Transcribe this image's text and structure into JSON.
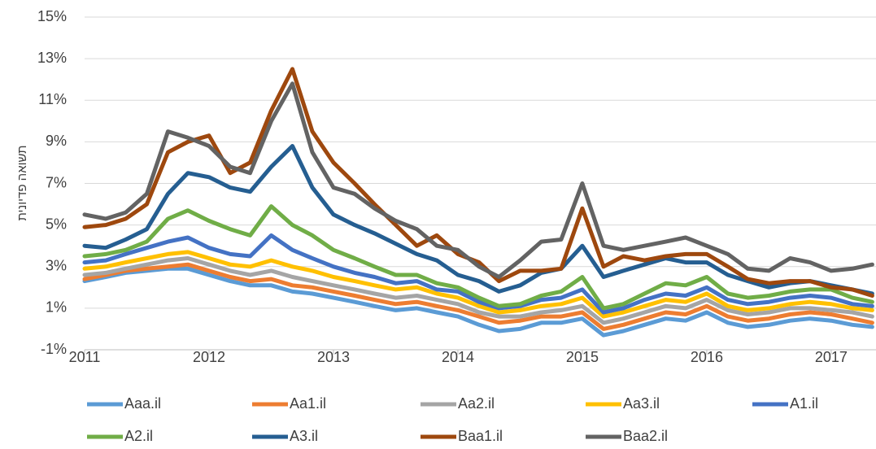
{
  "chart_data": {
    "type": "line",
    "y_label": "תשואה פדיונית",
    "x": [
      2011,
      2011.17,
      2011.33,
      2011.5,
      2011.67,
      2011.83,
      2012,
      2012.17,
      2012.33,
      2012.5,
      2012.67,
      2012.83,
      2013,
      2013.17,
      2013.33,
      2013.5,
      2013.67,
      2013.83,
      2014,
      2014.17,
      2014.33,
      2014.5,
      2014.67,
      2014.83,
      2015,
      2015.17,
      2015.33,
      2015.5,
      2015.67,
      2015.83,
      2016,
      2016.17,
      2016.33,
      2016.5,
      2016.67,
      2016.83,
      2017,
      2017.17,
      2017.33
    ],
    "xlim": [
      2011,
      2017.36
    ],
    "xticks": [
      2011,
      2012,
      2013,
      2014,
      2015,
      2016,
      2017
    ],
    "ylim": [
      -1,
      15
    ],
    "yticks": [
      {
        "value": -1,
        "label": "-1%"
      },
      {
        "value": 1,
        "label": "1%"
      },
      {
        "value": 3,
        "label": "3%"
      },
      {
        "value": 5,
        "label": "5%"
      },
      {
        "value": 7,
        "label": "7%"
      },
      {
        "value": 9,
        "label": "9%"
      },
      {
        "value": 11,
        "label": "11%"
      },
      {
        "value": 13,
        "label": "13%"
      },
      {
        "value": 15,
        "label": "15%"
      }
    ],
    "grid": true,
    "legend": "bottom",
    "series": [
      {
        "name": "Aaa.il",
        "color": "#5b9bd5",
        "values": [
          2.3,
          2.5,
          2.7,
          2.8,
          2.9,
          2.9,
          2.6,
          2.3,
          2.1,
          2.1,
          1.8,
          1.7,
          1.5,
          1.3,
          1.1,
          0.9,
          1.0,
          0.8,
          0.6,
          0.2,
          -0.1,
          0.0,
          0.3,
          0.3,
          0.5,
          -0.3,
          -0.1,
          0.2,
          0.5,
          0.4,
          0.8,
          0.3,
          0.1,
          0.2,
          0.4,
          0.5,
          0.4,
          0.2,
          0.1
        ]
      },
      {
        "name": "Aa1.il",
        "color": "#ed7d31",
        "values": [
          2.4,
          2.6,
          2.8,
          2.9,
          3.0,
          3.1,
          2.8,
          2.5,
          2.3,
          2.4,
          2.1,
          2.0,
          1.8,
          1.6,
          1.4,
          1.2,
          1.3,
          1.1,
          0.9,
          0.6,
          0.3,
          0.4,
          0.6,
          0.6,
          0.8,
          0.0,
          0.2,
          0.5,
          0.8,
          0.7,
          1.1,
          0.6,
          0.4,
          0.5,
          0.7,
          0.8,
          0.7,
          0.5,
          0.3
        ]
      },
      {
        "name": "Aa2.il",
        "color": "#a5a5a5",
        "values": [
          2.6,
          2.7,
          2.9,
          3.1,
          3.3,
          3.4,
          3.1,
          2.8,
          2.6,
          2.8,
          2.5,
          2.3,
          2.1,
          1.9,
          1.7,
          1.5,
          1.6,
          1.4,
          1.2,
          0.8,
          0.6,
          0.6,
          0.8,
          0.9,
          1.1,
          0.3,
          0.5,
          0.8,
          1.1,
          1.0,
          1.4,
          0.9,
          0.7,
          0.8,
          1.0,
          1.0,
          0.9,
          0.8,
          0.6
        ]
      },
      {
        "name": "Aa3.il",
        "color": "#ffc000",
        "values": [
          2.9,
          3.0,
          3.2,
          3.4,
          3.6,
          3.7,
          3.4,
          3.1,
          3.0,
          3.3,
          3.0,
          2.8,
          2.5,
          2.3,
          2.1,
          1.9,
          2.0,
          1.7,
          1.5,
          1.1,
          0.8,
          0.9,
          1.1,
          1.2,
          1.5,
          0.6,
          0.8,
          1.1,
          1.4,
          1.3,
          1.7,
          1.1,
          0.9,
          1.0,
          1.2,
          1.3,
          1.2,
          1.0,
          0.9
        ]
      },
      {
        "name": "A1.il",
        "color": "#4472c4",
        "values": [
          3.2,
          3.3,
          3.6,
          3.9,
          4.2,
          4.4,
          3.9,
          3.6,
          3.5,
          4.5,
          3.8,
          3.4,
          3.0,
          2.7,
          2.5,
          2.2,
          2.3,
          1.9,
          1.8,
          1.3,
          1.0,
          1.1,
          1.4,
          1.5,
          1.9,
          0.8,
          1.0,
          1.4,
          1.7,
          1.6,
          2.0,
          1.4,
          1.2,
          1.3,
          1.5,
          1.6,
          1.5,
          1.2,
          1.1
        ]
      },
      {
        "name": "A2.il",
        "color": "#70ad47",
        "values": [
          3.5,
          3.6,
          3.8,
          4.2,
          5.3,
          5.7,
          5.2,
          4.8,
          4.5,
          5.9,
          5.0,
          4.5,
          3.8,
          3.4,
          3.0,
          2.6,
          2.6,
          2.2,
          2.0,
          1.5,
          1.1,
          1.2,
          1.6,
          1.8,
          2.5,
          1.0,
          1.2,
          1.7,
          2.2,
          2.1,
          2.5,
          1.7,
          1.5,
          1.6,
          1.8,
          1.9,
          1.9,
          1.5,
          1.3
        ]
      },
      {
        "name": "A3.il",
        "color": "#255e91",
        "values": [
          4.0,
          3.9,
          4.3,
          4.8,
          6.5,
          7.5,
          7.3,
          6.8,
          6.6,
          7.8,
          8.8,
          6.8,
          5.5,
          5.0,
          4.6,
          4.1,
          3.6,
          3.3,
          2.6,
          2.3,
          1.8,
          2.1,
          2.7,
          2.9,
          4.0,
          2.5,
          2.8,
          3.1,
          3.4,
          3.2,
          3.2,
          2.6,
          2.3,
          2.0,
          2.2,
          2.3,
          2.1,
          1.9,
          1.7
        ]
      },
      {
        "name": "Baa1.il",
        "color": "#9e480e",
        "values": [
          4.9,
          5.0,
          5.3,
          6.0,
          8.5,
          9.0,
          9.3,
          7.5,
          8.0,
          10.5,
          12.5,
          9.5,
          8.0,
          7.0,
          6.0,
          5.0,
          4.0,
          4.5,
          3.6,
          3.2,
          2.3,
          2.8,
          2.8,
          2.9,
          5.8,
          3.0,
          3.5,
          3.3,
          3.5,
          3.6,
          3.6,
          3.0,
          2.4,
          2.2,
          2.3,
          2.3,
          2.0,
          1.9,
          1.6
        ]
      },
      {
        "name": "Baa2.il",
        "color": "#636363",
        "values": [
          5.5,
          5.3,
          5.6,
          6.5,
          9.5,
          9.2,
          8.8,
          7.8,
          7.5,
          10.0,
          11.8,
          8.5,
          6.8,
          6.5,
          5.8,
          5.2,
          4.8,
          4.0,
          3.8,
          3.0,
          2.5,
          3.3,
          4.2,
          4.3,
          7.0,
          4.0,
          3.8,
          4.0,
          4.2,
          4.4,
          4.0,
          3.6,
          2.9,
          2.8,
          3.4,
          3.2,
          2.8,
          2.9,
          3.1
        ]
      }
    ]
  }
}
